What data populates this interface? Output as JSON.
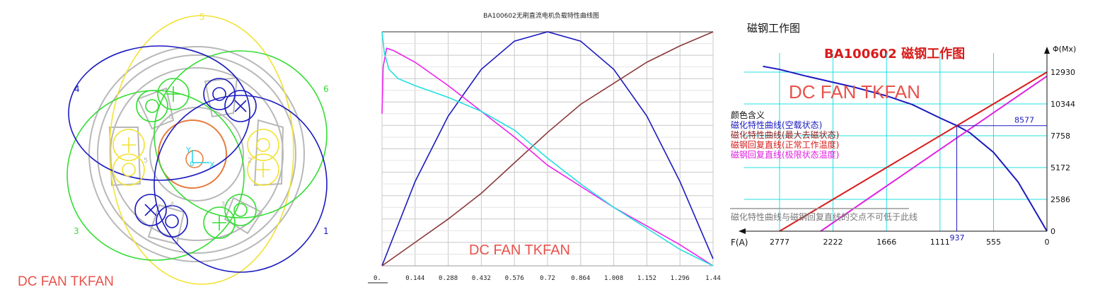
{
  "motor_panel": {
    "phase_labels": [
      "5",
      "6",
      "4",
      "1",
      "3"
    ],
    "slot_labels": [
      "6",
      "5",
      "4",
      "3",
      "2"
    ],
    "axis_y": "Y",
    "axis_x": "X",
    "origin": "0",
    "watermark": "DC FAN TKFAN",
    "colors": {
      "yellow": "#f2e233",
      "green": "#33dd33",
      "blue": "#1a1abf",
      "orange": "#e87a3c",
      "stator": "#b8b8b8",
      "axis": "#22d3e6"
    }
  },
  "load_panel": {
    "title": "BA100602无刷直流电机负载特性曲线图",
    "watermark": "DC FAN TKFAN",
    "x_first_label": "0.",
    "chart_data": {
      "type": "line",
      "title": "BA100602无刷直流电机负载特性曲线图",
      "x_ticks": [
        "0.144",
        "0.288",
        "0.432",
        "0.576",
        "0.72",
        "0.864",
        "1.008",
        "1.152",
        "1.296",
        "1.44"
      ],
      "xlim": [
        0,
        1.44
      ],
      "ylim": [
        0,
        1
      ],
      "grid": true,
      "series": [
        {
          "color": "#1a1abf",
          "x": [
            0,
            0.144,
            0.288,
            0.432,
            0.576,
            0.72,
            0.864,
            1.008,
            1.152,
            1.296,
            1.44
          ],
          "y": [
            0.0,
            0.36,
            0.64,
            0.84,
            0.96,
            1.0,
            0.96,
            0.84,
            0.64,
            0.36,
            0.03
          ]
        },
        {
          "color": "#8b3a3a",
          "x": [
            0,
            0.144,
            0.288,
            0.432,
            0.576,
            0.72,
            0.864,
            1.008,
            1.152,
            1.296,
            1.44
          ],
          "y": [
            0.0,
            0.1,
            0.2,
            0.31,
            0.44,
            0.57,
            0.69,
            0.78,
            0.87,
            0.94,
            1.0
          ]
        },
        {
          "color": "#ee22ee",
          "x": [
            0,
            0.005,
            0.02,
            0.05,
            0.144,
            0.288,
            0.432,
            0.576,
            0.72,
            0.864,
            1.008,
            1.152,
            1.296,
            1.44
          ],
          "y": [
            0.65,
            0.85,
            0.93,
            0.92,
            0.87,
            0.77,
            0.66,
            0.55,
            0.43,
            0.34,
            0.25,
            0.17,
            0.09,
            0.0
          ]
        },
        {
          "color": "#22e0e0",
          "x": [
            0,
            0.01,
            0.03,
            0.07,
            0.144,
            0.288,
            0.432,
            0.576,
            0.72,
            0.864,
            1.008,
            1.152,
            1.296,
            1.44
          ],
          "y": [
            1.0,
            0.91,
            0.84,
            0.8,
            0.77,
            0.72,
            0.66,
            0.58,
            0.46,
            0.35,
            0.25,
            0.16,
            0.07,
            0.0
          ]
        }
      ]
    }
  },
  "magnet_panel": {
    "title": "磁钢工作图",
    "chart_title": "BA100602 磁钢工作图",
    "watermark": "DC FAN TKFAN",
    "y_axis_label": "Φ(Mx)",
    "x_axis_label": "F(A)",
    "legend_heading": "颜色含义",
    "legend": [
      {
        "label": "磁化特性曲线(空载状态)",
        "color": "#1a1abf"
      },
      {
        "label": "磁化特性曲线(最大去磁状态)",
        "color": "#8b1a1a"
      },
      {
        "label": "磁钢回复直线(正常工作温度)",
        "color": "#d81b1b"
      },
      {
        "label": "磁钢回复直线(极限状态温度)",
        "color": "#e020e0"
      }
    ],
    "limit_note": "磁化特性曲线与磁钢回复直线的交点不可低于此线",
    "operating_point": {
      "flux": "8577",
      "mmf": "937"
    },
    "chart_data": {
      "type": "line",
      "title": "BA100602 磁钢工作图",
      "xlabel": "F(A)",
      "ylabel": "Φ(Mx)",
      "x_ticks": [
        "2777",
        "2222",
        "1666",
        "1111",
        "555",
        "0"
      ],
      "y_ticks": [
        "0",
        "2586",
        "5172",
        "7758",
        "10344",
        "12930"
      ],
      "x_reversed": true,
      "xlim": [
        0,
        2777
      ],
      "ylim": [
        0,
        12930
      ],
      "grid": true,
      "series": [
        {
          "color": "#1a1abf",
          "x": [
            0,
            300,
            555,
            800,
            937,
            1111,
            1400,
            1666,
            2000,
            2222,
            2500,
            2777,
            2950
          ],
          "y": [
            0,
            4000,
            6400,
            8000,
            8577,
            9200,
            10300,
            11000,
            11700,
            12100,
            12600,
            13150,
            13400
          ]
        },
        {
          "color": "#d81b1b",
          "x": [
            0,
            2777
          ],
          "y": [
            12930,
            0
          ]
        },
        {
          "color": "#e020e0",
          "x": [
            0,
            2350
          ],
          "y": [
            12600,
            0
          ]
        }
      ]
    }
  }
}
